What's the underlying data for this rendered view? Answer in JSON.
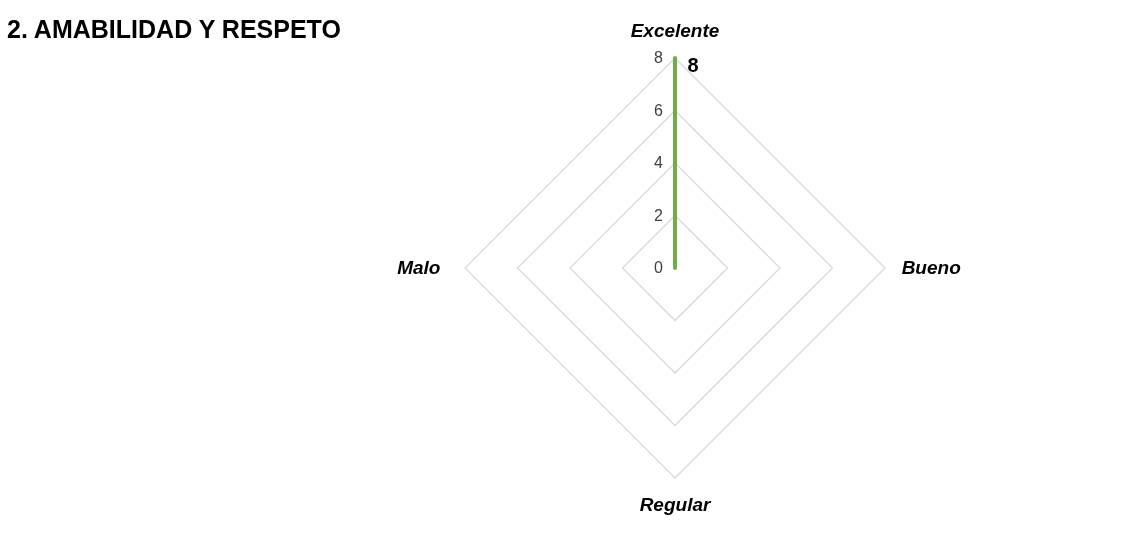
{
  "chart_data": {
    "type": "radar",
    "title": "2. AMABILIDAD Y RESPETO",
    "categories": [
      "Excelente",
      "Bueno",
      "Regular",
      "Malo"
    ],
    "series": [
      {
        "color": "#70ad47",
        "values": [
          8,
          0,
          0,
          0
        ],
        "value_labels": [
          "8",
          null,
          null,
          null
        ]
      }
    ],
    "ylim": [
      0,
      8
    ],
    "yticks": [
      0,
      2,
      4,
      6,
      8
    ],
    "grid": true,
    "marker": "none",
    "line_style": "solid"
  }
}
